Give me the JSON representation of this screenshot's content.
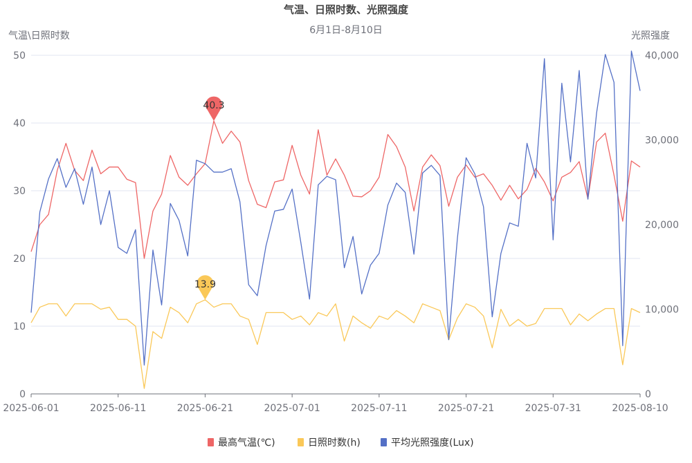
{
  "chart_data": {
    "type": "line",
    "title": "气温、日照时数、光照强度",
    "subtitle": "6月1日-8月10日",
    "ylabel_left": "气温\\日照时数",
    "ylabel_right": "光照强度",
    "x_start": "2025-06-01",
    "x_tick_labels": [
      "2025-06-01",
      "2025-06-11",
      "2025-06-21",
      "2025-07-01",
      "2025-07-11",
      "2025-07-21",
      "2025-07-31",
      "2025-08-10"
    ],
    "ylim_left": [
      0,
      50
    ],
    "y_left_ticks": [
      "0",
      "10",
      "20",
      "30",
      "40",
      "50"
    ],
    "ylim_right": [
      0,
      40000
    ],
    "y_right_ticks": [
      "0",
      "10,000",
      "20,000",
      "30,000",
      "40,000"
    ],
    "grid": true,
    "legend_position": "bottom-center",
    "series": [
      {
        "name": "最高气温(℃)",
        "axis": "left",
        "color": "#ee6666",
        "values": [
          21,
          25,
          26.5,
          33,
          37,
          33,
          31.5,
          36,
          32.5,
          33.5,
          33.5,
          31.7,
          31.2,
          20,
          27,
          29.5,
          35.2,
          32,
          30.8,
          32.5,
          34,
          40.3,
          37,
          38.8,
          37.2,
          31.5,
          28,
          27.5,
          31.3,
          31.6,
          36.7,
          32.3,
          29.5,
          39,
          32.3,
          34.7,
          32.3,
          29.2,
          29.1,
          30,
          32,
          38.3,
          36.5,
          33.5,
          27,
          33.5,
          35.3,
          33.7,
          27.7,
          32,
          33.8,
          32,
          32.5,
          30.8,
          28.6,
          30.8,
          28.8,
          30.2,
          33.3,
          31.3,
          28.5,
          32,
          32.7,
          34.3,
          28.8,
          37.2,
          38.5,
          32.3,
          25.5,
          34.4,
          33.5
        ]
      },
      {
        "name": "日照时数(h)",
        "axis": "left",
        "color": "#fac858",
        "values": [
          10.5,
          12.8,
          13.3,
          13.3,
          11.5,
          13.3,
          13.3,
          13.3,
          12.5,
          12.8,
          11,
          11,
          10,
          0.8,
          9.2,
          8.2,
          12.8,
          12,
          10.5,
          13.3,
          13.9,
          12.8,
          13.3,
          13.3,
          11.5,
          11,
          7.3,
          12,
          12,
          12,
          11,
          11.5,
          10.2,
          12,
          11.5,
          13.3,
          7.8,
          11.5,
          10.5,
          9.7,
          11.5,
          11,
          12.3,
          11.5,
          10.5,
          13.3,
          12.8,
          12.3,
          8,
          11.2,
          13.3,
          12.8,
          11.5,
          6.8,
          12.5,
          10,
          11,
          10,
          10.4,
          12.6,
          12.6,
          12.6,
          10.2,
          11.8,
          10.8,
          11.8,
          12.6,
          12.6,
          4.3,
          12.6,
          12
        ]
      },
      {
        "name": "平均光照强度(Lux)",
        "axis": "right",
        "color": "#5470c6",
        "values": [
          9600,
          21500,
          25400,
          27800,
          24400,
          26600,
          22400,
          26800,
          20000,
          24000,
          17300,
          16600,
          19400,
          3400,
          17000,
          10500,
          22500,
          20500,
          16300,
          27600,
          27200,
          26200,
          26200,
          26600,
          22700,
          12900,
          11600,
          17500,
          21600,
          21800,
          24200,
          17900,
          11200,
          24700,
          25700,
          25300,
          14900,
          18600,
          11800,
          15200,
          16600,
          22300,
          24900,
          23800,
          16500,
          26100,
          27000,
          25800,
          6400,
          18400,
          27900,
          26000,
          22100,
          9100,
          16600,
          20200,
          19800,
          29600,
          25500,
          39600,
          18200,
          36700,
          27400,
          38200,
          23000,
          33200,
          40100,
          36800,
          5700,
          40500,
          35800
        ]
      }
    ],
    "markpoints": [
      {
        "series": 0,
        "label": "40.3"
      },
      {
        "series": 1,
        "label": "13.9"
      }
    ]
  }
}
